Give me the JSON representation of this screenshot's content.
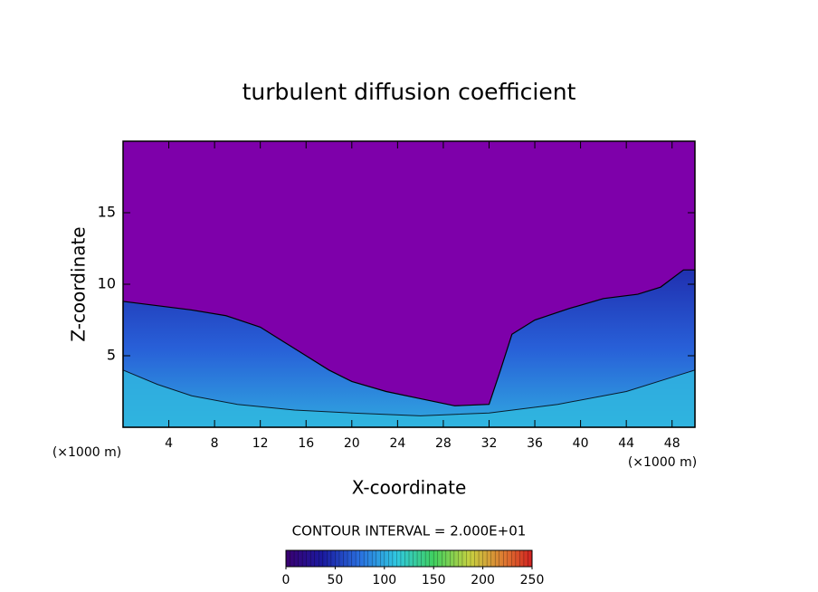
{
  "chart_data": {
    "type": "contour",
    "title": "turbulent diffusion coefficient",
    "x_label": "X-coordinate",
    "y_label": "Z-coordinate",
    "x_unit_label": "(×1000 m)",
    "y_unit_label": "(×1000 m)",
    "xlim": [
      0,
      50
    ],
    "ylim": [
      0,
      20
    ],
    "xticks": [
      4,
      8,
      12,
      16,
      20,
      24,
      28,
      32,
      36,
      40,
      44,
      48
    ],
    "yticks": [
      5,
      10,
      15
    ],
    "contour_interval_label": "CONTOUR INTERVAL = 2.000E+01",
    "colorbar": {
      "lim": [
        0,
        250
      ],
      "ticks": [
        0,
        50,
        100,
        150,
        200,
        250
      ]
    }
  }
}
